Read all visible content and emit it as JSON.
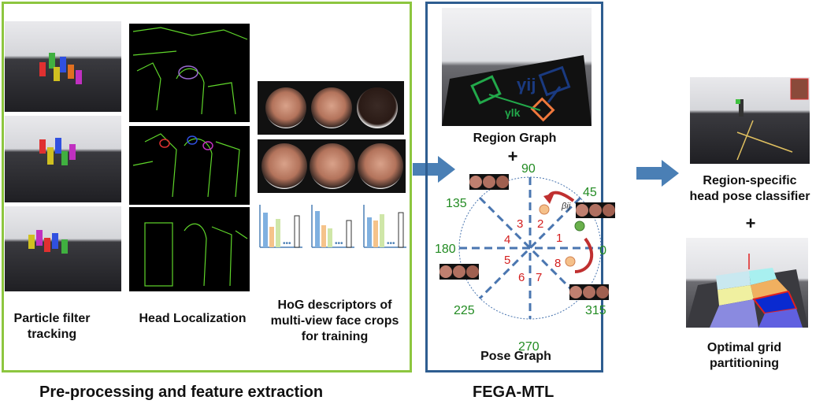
{
  "labels": {
    "particle_filter": "Particle filter tracking",
    "head_localization": "Head Localization",
    "hog_descriptors": "HoG descriptors of multi-view face crops for training",
    "region_graph": "Region Graph",
    "pose_graph": "Pose Graph",
    "region_classifier": "Region-specific head pose classifier",
    "optimal_grid": "Optimal grid partitioning",
    "preprocessing_title": "Pre-processing and feature extraction",
    "fega_title": "FEGA-MTL",
    "plus": "+"
  },
  "pose_graph": {
    "angles": [
      "90",
      "45",
      "0",
      "315",
      "270",
      "225",
      "180",
      "135"
    ],
    "sectors": [
      "1",
      "2",
      "3",
      "4",
      "5",
      "6",
      "7",
      "8"
    ],
    "beta": "βij"
  },
  "region_graph_symbols": {
    "gamma_lk": "γlk",
    "gamma_ij": "γij"
  },
  "colors": {
    "green_frame": "#8dc63f",
    "blue_frame": "#2e5d90",
    "arrow_blue": "#4a7fb5",
    "angle_green": "#228b22",
    "sector_red": "#d42020",
    "dashed_blue": "#4a76b0"
  }
}
